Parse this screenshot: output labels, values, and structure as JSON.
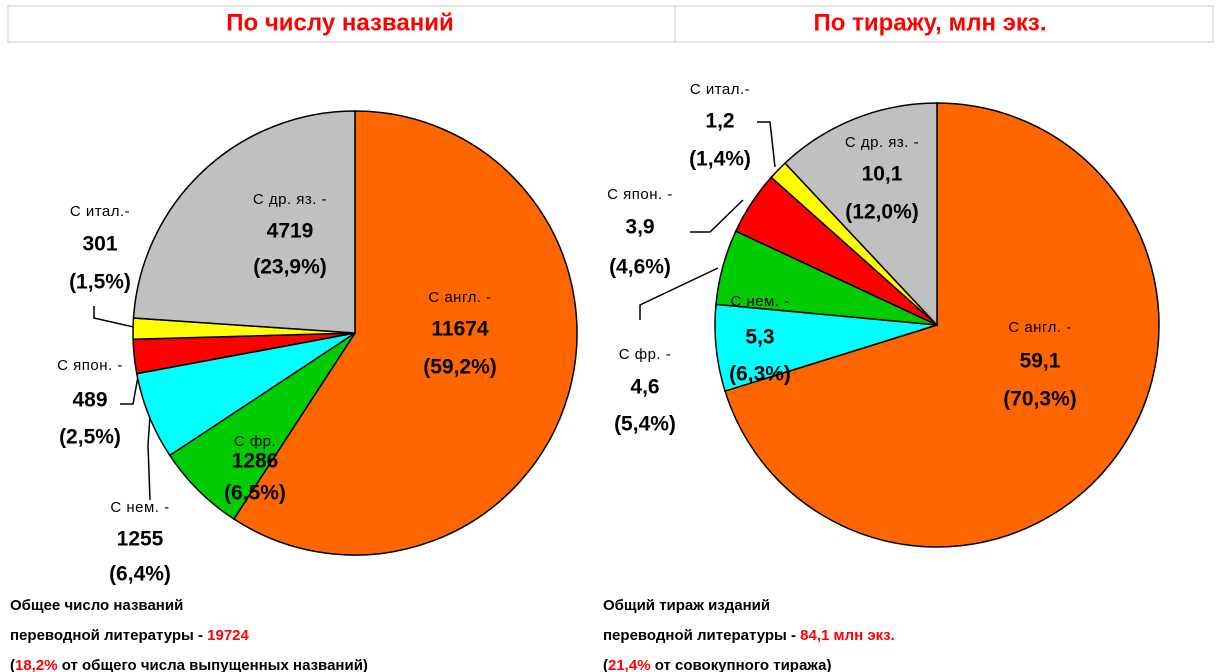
{
  "chart_data": [
    {
      "type": "pie",
      "title": "По числу названий",
      "categories": [
        "С англ. -",
        "С фр.",
        "С нем. -",
        "С япон. -",
        "С итал.-",
        "С др. яз. -"
      ],
      "values": [
        11674,
        1286,
        1255,
        489,
        301,
        4719
      ],
      "percent_labels": [
        "(59,2%)",
        "(6,5%)",
        "(6,4%)",
        "(2,5%)",
        "(1,5%)",
        "(23,9%)"
      ],
      "colors": [
        "#ff6600",
        "#00cc00",
        "#00ffff",
        "#ff0000",
        "#ffff00",
        "#c0c0c0"
      ],
      "notes": [
        [
          {
            "text": "Общее число названий"
          }
        ],
        [
          {
            "text": "переводной литературы - "
          },
          {
            "text": "19724",
            "color": "#ff0000"
          }
        ],
        [
          {
            "text": "("
          },
          {
            "text": "18,2%",
            "color": "#ff0000"
          },
          {
            "text": " от общего числа выпущенных названий)"
          }
        ]
      ]
    },
    {
      "type": "pie",
      "title": "По тиражу, млн экз.",
      "categories": [
        "С англ. -",
        "С нем. -",
        "С фр. -",
        "С япон. -",
        "С итал.-",
        "С др. яз. -"
      ],
      "values": [
        59.1,
        5.3,
        4.6,
        3.9,
        1.2,
        10.1
      ],
      "value_labels": [
        "59,1",
        "5,3",
        "4,6",
        "3,9",
        "1,2",
        "10,1"
      ],
      "percent_labels": [
        "(70,3%)",
        "(6,3%)",
        "(5,4%)",
        "(4,6%)",
        "(1,4%)",
        "(12,0%)"
      ],
      "colors": [
        "#ff6600",
        "#00ffff",
        "#00cc00",
        "#ff0000",
        "#ffff00",
        "#c0c0c0"
      ],
      "notes": [
        [
          {
            "text": "Общий тираж изданий"
          }
        ],
        [
          {
            "text": "переводной литературы - "
          },
          {
            "text": "84,1 млн экз.",
            "color": "#ff0000"
          }
        ],
        [
          {
            "text": "("
          },
          {
            "text": "21,4%",
            "color": "#ff0000"
          },
          {
            "text": " от совокупного тиража)"
          }
        ]
      ]
    }
  ]
}
